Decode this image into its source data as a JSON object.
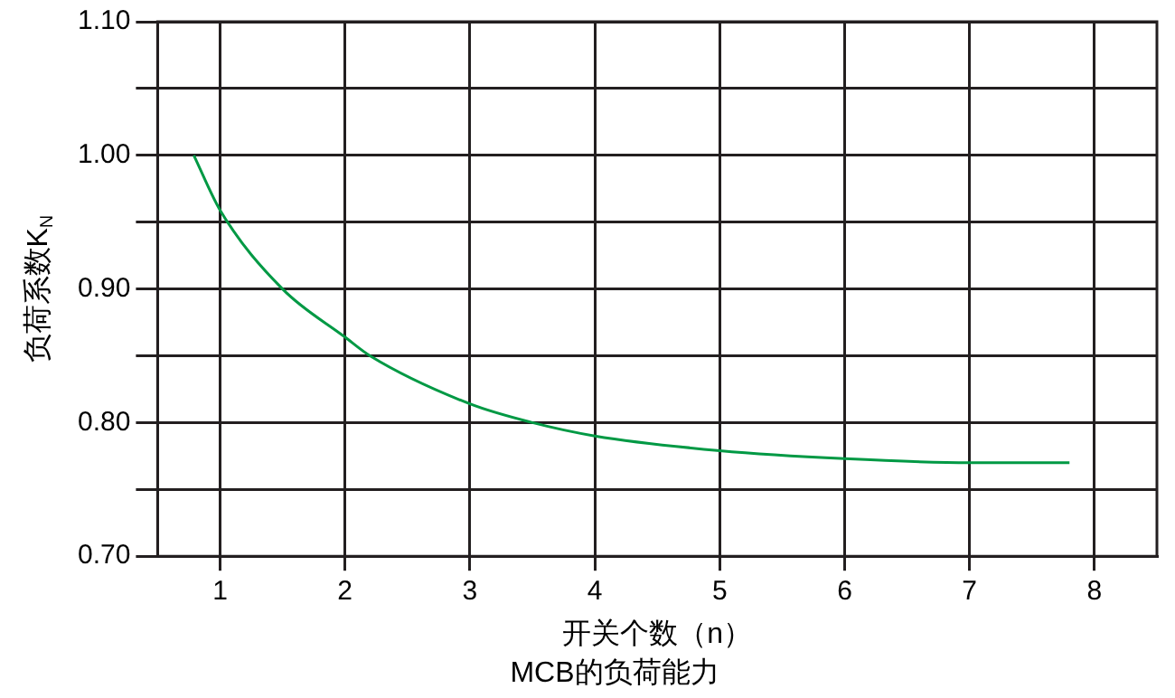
{
  "chart_data": {
    "type": "line",
    "title": "MCB的负荷能力",
    "xlabel": "开关个数（n）",
    "ylabel": "负荷系数K$_{N}$",
    "x": [
      0.79,
      1,
      1.5,
      2,
      2.2,
      3,
      3.5,
      4,
      5,
      6,
      7,
      7.8
    ],
    "series": [
      {
        "color": "#009944",
        "values": [
          1.0,
          0.959,
          0.9,
          0.864,
          0.85,
          0.814,
          0.8,
          0.79,
          0.779,
          0.773,
          0.77,
          0.77
        ]
      }
    ],
    "xlim": [
      0.5,
      8.5
    ],
    "xticks": [
      1,
      2,
      3,
      4,
      5,
      6,
      7,
      8
    ],
    "ylim": [
      0.7,
      1.1
    ],
    "yticks": [
      {
        "value": 0.7,
        "label": "0.70"
      },
      {
        "value": 0.75,
        "label": null
      },
      {
        "value": 0.8,
        "label": "0.80"
      },
      {
        "value": 0.85,
        "label": null
      },
      {
        "value": 0.9,
        "label": "0.90"
      },
      {
        "value": 0.95,
        "label": null
      },
      {
        "value": 1.0,
        "label": "1.00"
      },
      {
        "value": 1.05,
        "label": null
      },
      {
        "value": 1.1,
        "label": "1.10"
      }
    ],
    "grid": true,
    "legend": false,
    "marker": "none",
    "line_style": "solid"
  }
}
